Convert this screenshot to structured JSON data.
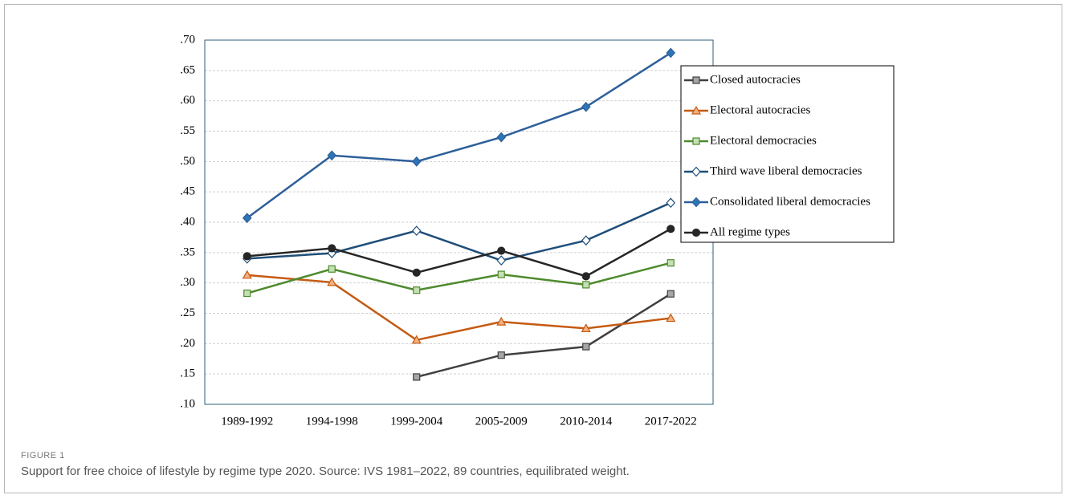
{
  "chart_data": {
    "type": "line",
    "categories": [
      "1989-1992",
      "1994-1998",
      "1999-2004",
      "2005-2009",
      "2010-2014",
      "2017-2022"
    ],
    "series": [
      {
        "name": "Closed autocracies",
        "color": "#404040",
        "marker": "square",
        "marker_fill": "#a6a6a6",
        "values": [
          null,
          null,
          0.145,
          0.181,
          0.195,
          0.282
        ]
      },
      {
        "name": "Electoral autocracies",
        "color": "#c55a11",
        "marker": "triangle",
        "marker_fill": "#f4b183",
        "values": [
          0.313,
          0.301,
          0.206,
          0.236,
          0.225,
          0.242
        ]
      },
      {
        "name": "Electoral democracies",
        "color": "#4e8a2e",
        "marker": "square",
        "marker_fill": "#c5e0b4",
        "values": [
          0.283,
          0.323,
          0.288,
          0.314,
          0.297,
          0.333
        ]
      },
      {
        "name": "Third wave liberal democracies",
        "color": "#1f4e79",
        "marker": "diamond",
        "marker_fill": "#ffffff",
        "values": [
          0.34,
          0.349,
          0.386,
          0.337,
          0.37,
          0.432
        ]
      },
      {
        "name": "Consolidated liberal democracies",
        "color": "#2e5f9a",
        "marker": "diamond",
        "marker_fill": "#2e75b6",
        "values": [
          0.407,
          0.51,
          0.5,
          0.54,
          0.59,
          0.679
        ]
      },
      {
        "name": "All regime types",
        "color": "#262626",
        "marker": "circle",
        "marker_fill": "#262626",
        "values": [
          0.344,
          0.357,
          0.317,
          0.353,
          0.311,
          0.389
        ]
      }
    ],
    "ylim": [
      0.1,
      0.7
    ],
    "yticks": [
      {
        "value": 0.1,
        "label": ".10"
      },
      {
        "value": 0.15,
        "label": ".15"
      },
      {
        "value": 0.2,
        "label": ".20"
      },
      {
        "value": 0.25,
        "label": ".25"
      },
      {
        "value": 0.3,
        "label": ".30"
      },
      {
        "value": 0.35,
        "label": ".35"
      },
      {
        "value": 0.4,
        "label": ".40"
      },
      {
        "value": 0.45,
        "label": ".45"
      },
      {
        "value": 0.5,
        "label": ".50"
      },
      {
        "value": 0.55,
        "label": ".55"
      },
      {
        "value": 0.6,
        "label": ".60"
      },
      {
        "value": 0.65,
        "label": ".65"
      },
      {
        "value": 0.7,
        "label": ".70"
      }
    ],
    "grid": true,
    "legend": "upper right"
  },
  "caption": {
    "label": "FIGURE 1",
    "text": "Support for free choice of lifestyle by regime type 2020. Source: IVS 1981–2022, 89 countries, equilibrated weight."
  }
}
